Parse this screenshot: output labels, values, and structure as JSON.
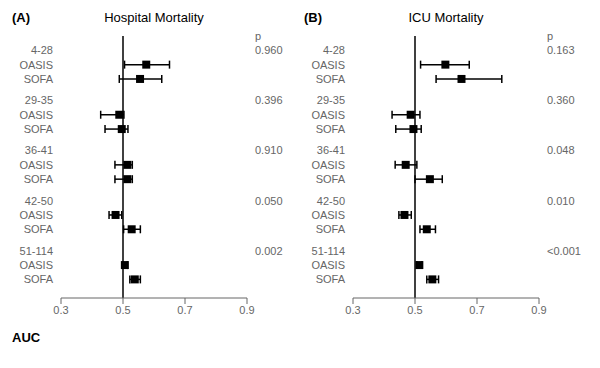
{
  "chart_data": [
    {
      "type": "forest",
      "panel_label": "(A)",
      "title": "Hospital Mortality",
      "p_header": "p",
      "xlabel": "AUC",
      "xlim": [
        0.3,
        0.9
      ],
      "xticks": [
        0.3,
        0.5,
        0.7,
        0.9
      ],
      "reference_x": 0.5,
      "grid": false,
      "groups": [
        "4-28",
        "29-35",
        "36-41",
        "42-50",
        "51-114"
      ],
      "p_values": [
        "0.960",
        "0.396",
        "0.910",
        "0.050",
        "0.002"
      ],
      "series": [
        {
          "name": "OASIS",
          "color": "#000000",
          "marker": "square",
          "values": [
            0.575,
            0.488,
            0.514,
            0.476,
            0.506
          ],
          "lower": [
            0.505,
            0.428,
            0.474,
            0.455,
            0.499
          ],
          "upper": [
            0.65,
            0.503,
            0.53,
            0.496,
            0.514
          ]
        },
        {
          "name": "SOFA",
          "color": "#000000",
          "marker": "square",
          "values": [
            0.555,
            0.496,
            0.514,
            0.528,
            0.538
          ],
          "lower": [
            0.488,
            0.442,
            0.474,
            0.502,
            0.522
          ],
          "upper": [
            0.625,
            0.516,
            0.53,
            0.556,
            0.556
          ]
        }
      ]
    },
    {
      "type": "forest",
      "panel_label": "(B)",
      "title": "ICU Mortality",
      "p_header": "p",
      "xlim": [
        0.3,
        0.9
      ],
      "xticks": [
        0.3,
        0.5,
        0.7,
        0.9
      ],
      "reference_x": 0.5,
      "grid": false,
      "groups": [
        "4-28",
        "29-35",
        "36-41",
        "42-50",
        "51-114"
      ],
      "p_values": [
        "0.163",
        "0.360",
        "0.048",
        "0.010",
        "<0.001"
      ],
      "series": [
        {
          "name": "OASIS",
          "color": "#000000",
          "marker": "square",
          "values": [
            0.598,
            0.486,
            0.47,
            0.466,
            0.514
          ],
          "lower": [
            0.518,
            0.426,
            0.436,
            0.448,
            0.506
          ],
          "upper": [
            0.675,
            0.516,
            0.506,
            0.488,
            0.522
          ]
        },
        {
          "name": "SOFA",
          "color": "#000000",
          "marker": "square",
          "values": [
            0.65,
            0.495,
            0.548,
            0.538,
            0.556
          ],
          "lower": [
            0.568,
            0.438,
            0.5,
            0.516,
            0.538
          ],
          "upper": [
            0.78,
            0.52,
            0.588,
            0.566,
            0.576
          ]
        }
      ]
    }
  ]
}
